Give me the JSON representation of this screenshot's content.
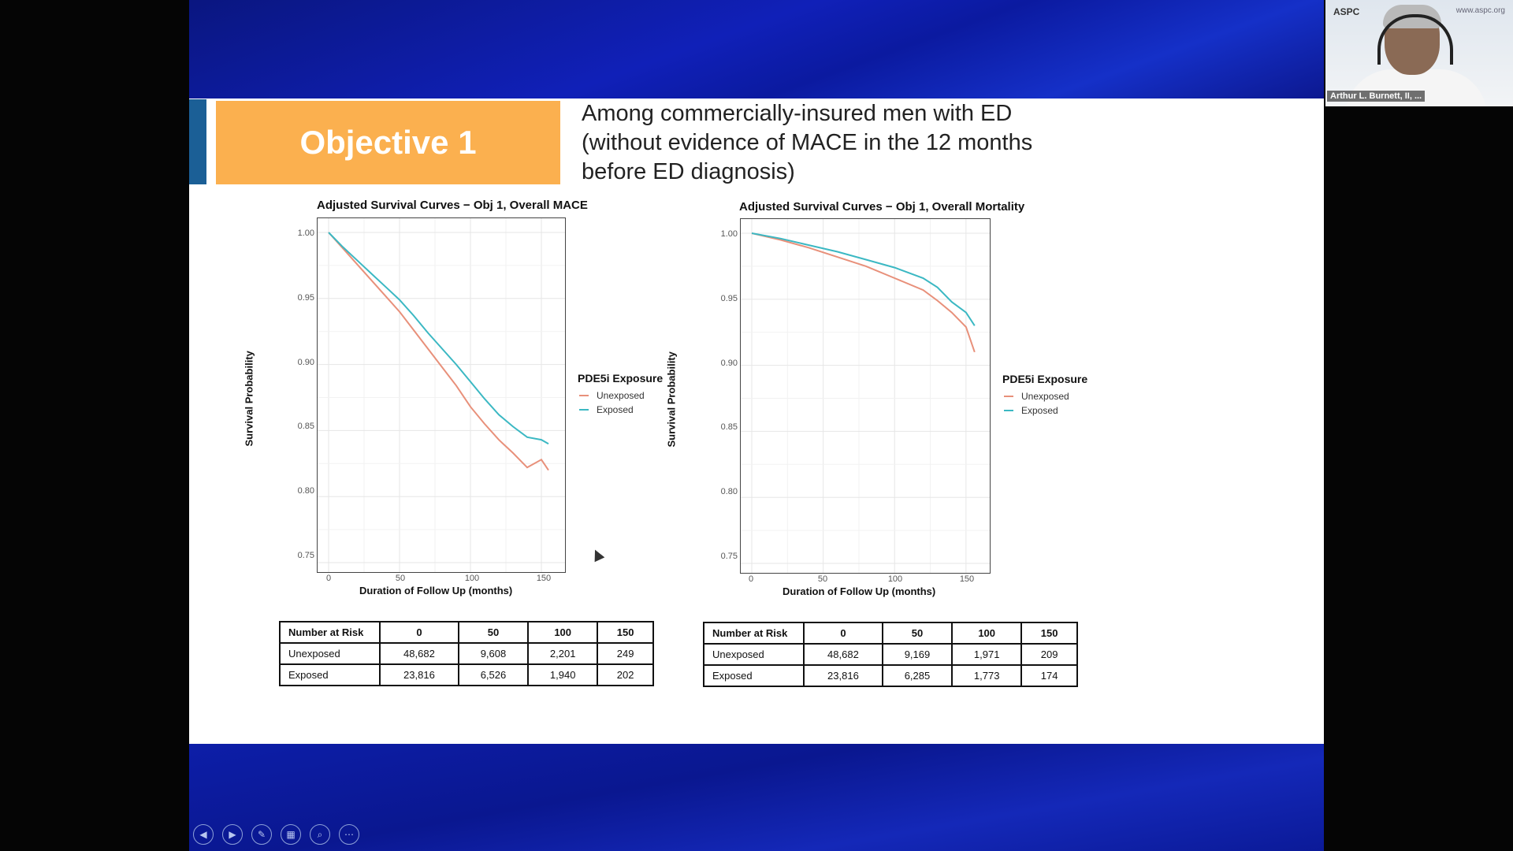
{
  "slide": {
    "objective_label": "Objective 1",
    "headline_lines": [
      "Among commercially-insured men with ED",
      "(without evidence of MACE in the 12 months",
      "before ED diagnosis)"
    ]
  },
  "colors": {
    "unexposed": "#e8907a",
    "exposed": "#3bb8c3",
    "objective_box": "#fbb04f",
    "slide_blue": "#1020b8"
  },
  "chart_data": [
    {
      "type": "line",
      "title": "Adjusted Survival Curves − Obj 1, Overall MACE",
      "xlabel": "Duration of Follow Up (months)",
      "ylabel": "Survival Probability",
      "xlim": [
        0,
        160
      ],
      "ylim": [
        0.75,
        1.0
      ],
      "xticks": [
        "0",
        "50",
        "100",
        "150"
      ],
      "yticks": [
        "0.75",
        "0.80",
        "0.85",
        "0.90",
        "0.95",
        "1.00"
      ],
      "legend_title": "PDE5i Exposure",
      "legend_position": "right",
      "grid": true,
      "series": [
        {
          "name": "Unexposed",
          "x": [
            0,
            10,
            20,
            30,
            40,
            50,
            60,
            70,
            80,
            90,
            100,
            110,
            120,
            130,
            140,
            150,
            155
          ],
          "y": [
            1.0,
            0.988,
            0.976,
            0.964,
            0.952,
            0.94,
            0.926,
            0.912,
            0.898,
            0.884,
            0.868,
            0.855,
            0.843,
            0.833,
            0.822,
            0.828,
            0.82
          ]
        },
        {
          "name": "Exposed",
          "x": [
            0,
            10,
            20,
            30,
            40,
            50,
            60,
            70,
            80,
            90,
            100,
            110,
            120,
            130,
            140,
            150,
            155
          ],
          "y": [
            1.0,
            0.989,
            0.979,
            0.969,
            0.959,
            0.949,
            0.937,
            0.924,
            0.912,
            0.9,
            0.887,
            0.874,
            0.862,
            0.853,
            0.845,
            0.843,
            0.84
          ]
        }
      ]
    },
    {
      "type": "line",
      "title": "Adjusted Survival Curves − Obj 1, Overall Mortality",
      "xlabel": "Duration of Follow Up (months)",
      "ylabel": "Survival Probability",
      "xlim": [
        0,
        160
      ],
      "ylim": [
        0.75,
        1.0
      ],
      "xticks": [
        "0",
        "50",
        "100",
        "150"
      ],
      "yticks": [
        "0.75",
        "0.80",
        "0.85",
        "0.90",
        "0.95",
        "1.00"
      ],
      "legend_title": "PDE5i Exposure",
      "legend_position": "right",
      "grid": true,
      "series": [
        {
          "name": "Unexposed",
          "x": [
            0,
            20,
            40,
            60,
            80,
            100,
            120,
            130,
            140,
            150,
            156
          ],
          "y": [
            1.0,
            0.995,
            0.989,
            0.982,
            0.975,
            0.966,
            0.957,
            0.949,
            0.94,
            0.929,
            0.91
          ]
        },
        {
          "name": "Exposed",
          "x": [
            0,
            20,
            40,
            60,
            80,
            100,
            120,
            130,
            140,
            150,
            156
          ],
          "y": [
            1.0,
            0.996,
            0.991,
            0.986,
            0.98,
            0.974,
            0.966,
            0.959,
            0.948,
            0.94,
            0.93
          ]
        }
      ]
    }
  ],
  "risk_tables": [
    {
      "header": [
        "Number at Risk",
        "0",
        "50",
        "100",
        "150"
      ],
      "rows": [
        [
          "Unexposed",
          "48,682",
          "9,608",
          "2,201",
          "249"
        ],
        [
          "Exposed",
          "23,816",
          "6,526",
          "1,940",
          "202"
        ]
      ]
    },
    {
      "header": [
        "Number at Risk",
        "0",
        "50",
        "100",
        "150"
      ],
      "rows": [
        [
          "Unexposed",
          "48,682",
          "9,169",
          "1,971",
          "209"
        ],
        [
          "Exposed",
          "23,816",
          "6,285",
          "1,773",
          "174"
        ]
      ]
    }
  ],
  "video": {
    "participant_name": "Arthur L. Burnett, II, ...",
    "logo_text": "ASPC",
    "logo_right": "www.aspc.org"
  },
  "controls": [
    {
      "icon": "previous-icon",
      "glyph": "◀"
    },
    {
      "icon": "next-icon",
      "glyph": "▶"
    },
    {
      "icon": "pen-icon",
      "glyph": "✎"
    },
    {
      "icon": "slides-grid-icon",
      "glyph": "▦"
    },
    {
      "icon": "zoom-icon",
      "glyph": "⌕"
    },
    {
      "icon": "more-options-icon",
      "glyph": "⋯"
    }
  ]
}
